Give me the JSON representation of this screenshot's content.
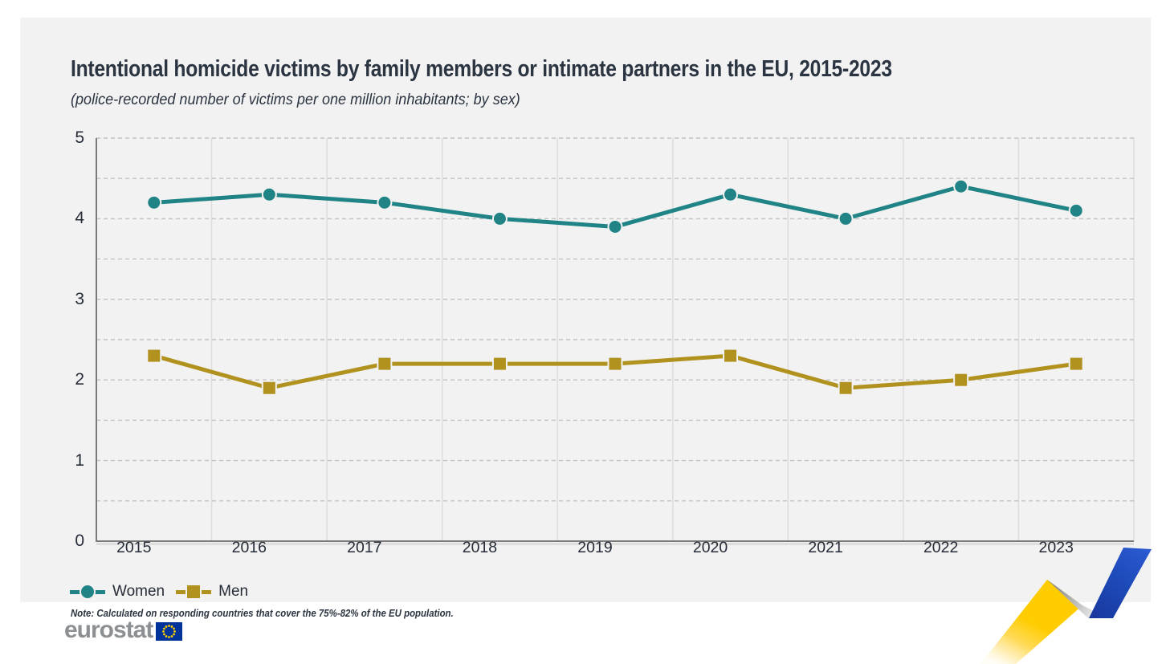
{
  "header": {
    "title": "Intentional homicide victims by family members or intimate partners in the EU, 2015-2023",
    "subtitle": "(police-recorded number of victims per one million inhabitants; by sex)"
  },
  "chart_data": {
    "type": "line",
    "categories": [
      "2015",
      "2016",
      "2017",
      "2018",
      "2019",
      "2020",
      "2021",
      "2022",
      "2023"
    ],
    "series": [
      {
        "name": "Women",
        "marker": "circle",
        "color": "#208486",
        "values": [
          4.2,
          4.3,
          4.2,
          4.0,
          3.9,
          4.3,
          4.0,
          4.4,
          4.1
        ]
      },
      {
        "name": "Men",
        "marker": "square",
        "color": "#b1921f",
        "values": [
          2.3,
          1.9,
          2.2,
          2.2,
          2.2,
          2.3,
          1.9,
          2.0,
          2.2
        ]
      }
    ],
    "title": "Intentional homicide victims by family members or intimate partners in the EU, 2015-2023",
    "xlabel": "",
    "ylabel": "police-recorded number of victims per one million inhabitants",
    "ylim": [
      0,
      5
    ],
    "y_ticks": [
      0,
      1,
      2,
      3,
      4,
      5
    ],
    "grid": {
      "horizontal": "dashed every 0.5",
      "vertical": "solid at category boundaries"
    },
    "legend_position": "bottom-left"
  },
  "legend": {
    "items": [
      {
        "label": "Women"
      },
      {
        "label": "Men"
      }
    ]
  },
  "footer": {
    "note": "Note: Calculated on responding countries that cover the 75%-82% of the EU population.",
    "logo_text": "eurostat"
  },
  "colors": {
    "card_background": "#f2f2f2",
    "page_background": "#ffffff",
    "title_text": "#2b3441",
    "tick_text": "#262d38",
    "axis_line": "#7b7b7b",
    "grid_vertical": "#dcdcdc",
    "grid_dashed": "#c2c2c2",
    "women_series": "#208486",
    "men_series": "#b1921f",
    "logo_gray": "#8d9093",
    "flag_blue": "#003399",
    "flag_star": "#ffcc00",
    "ribbon_yellow": "#ffcc00",
    "ribbon_blue": "#2253c4",
    "ribbon_fold_gray": "#9a9a9a"
  }
}
